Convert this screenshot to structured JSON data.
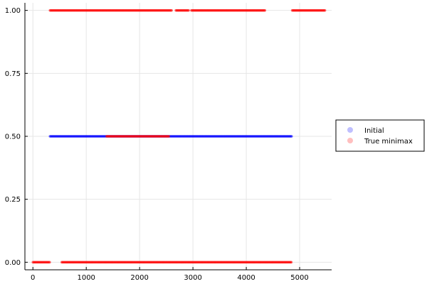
{
  "chart_data": {
    "type": "scatter",
    "title": "",
    "xlabel": "",
    "ylabel": "",
    "xlim": [
      -150,
      5600
    ],
    "ylim": [
      -0.03,
      1.03
    ],
    "x_ticks": [
      0,
      1000,
      2000,
      3000,
      4000,
      5000
    ],
    "y_ticks": [
      0.0,
      0.25,
      0.5,
      0.75,
      1.0
    ],
    "x_tick_labels": [
      "0",
      "1000",
      "2000",
      "3000",
      "4000",
      "5000"
    ],
    "y_tick_labels": [
      "0.00",
      "0.25",
      "0.50",
      "0.75",
      "1.00"
    ],
    "grid": true,
    "legend_position": "right",
    "series": [
      {
        "name": "Initial",
        "color": "#0000ff",
        "point_groups": [
          {
            "y": 0.5,
            "x_ranges": [
              [
                320,
                4850
              ]
            ]
          }
        ]
      },
      {
        "name": "True minimax",
        "color": "#ff0000",
        "point_groups": [
          {
            "y": 1.0,
            "x_ranges": [
              [
                320,
                2600
              ],
              [
                2680,
                2920
              ],
              [
                2970,
                4360
              ],
              [
                4860,
                5480
              ]
            ]
          },
          {
            "y": 0.5,
            "x_ranges": [
              [
                1380,
                2560
              ]
            ]
          },
          {
            "y": 0.0,
            "x_ranges": [
              [
                0,
                320
              ],
              [
                540,
                4850
              ]
            ]
          }
        ]
      }
    ]
  }
}
